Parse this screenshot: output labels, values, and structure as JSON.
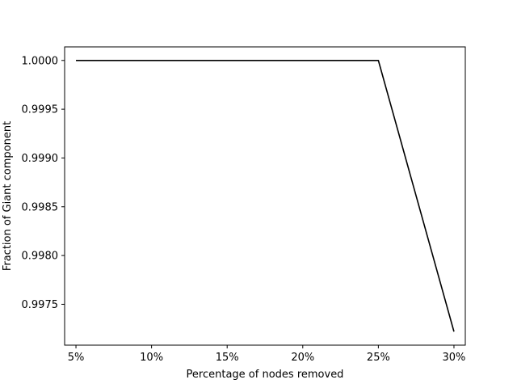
{
  "chart_data": {
    "type": "line",
    "xlabel": "Percentage of nodes removed",
    "ylabel": "Fraction of Giant component",
    "categories": [
      "5%",
      "10%",
      "15%",
      "20%",
      "25%",
      "30%"
    ],
    "x": [
      5,
      10,
      15,
      20,
      25,
      30
    ],
    "series": [
      {
        "values": [
          1.0,
          1.0,
          1.0,
          1.0,
          1.0,
          0.99722
        ],
        "color": "#000000"
      }
    ],
    "yticks": [
      0.9975,
      0.998,
      0.9985,
      0.999,
      0.9995,
      1.0
    ],
    "ytick_labels": [
      "0.9975",
      "0.9980",
      "0.9985",
      "0.9990",
      "0.9995",
      "1.0000"
    ],
    "xlim": [
      4.25,
      30.75
    ],
    "ylim": [
      0.997081,
      1.000139
    ],
    "grid": false,
    "legend": "none"
  }
}
